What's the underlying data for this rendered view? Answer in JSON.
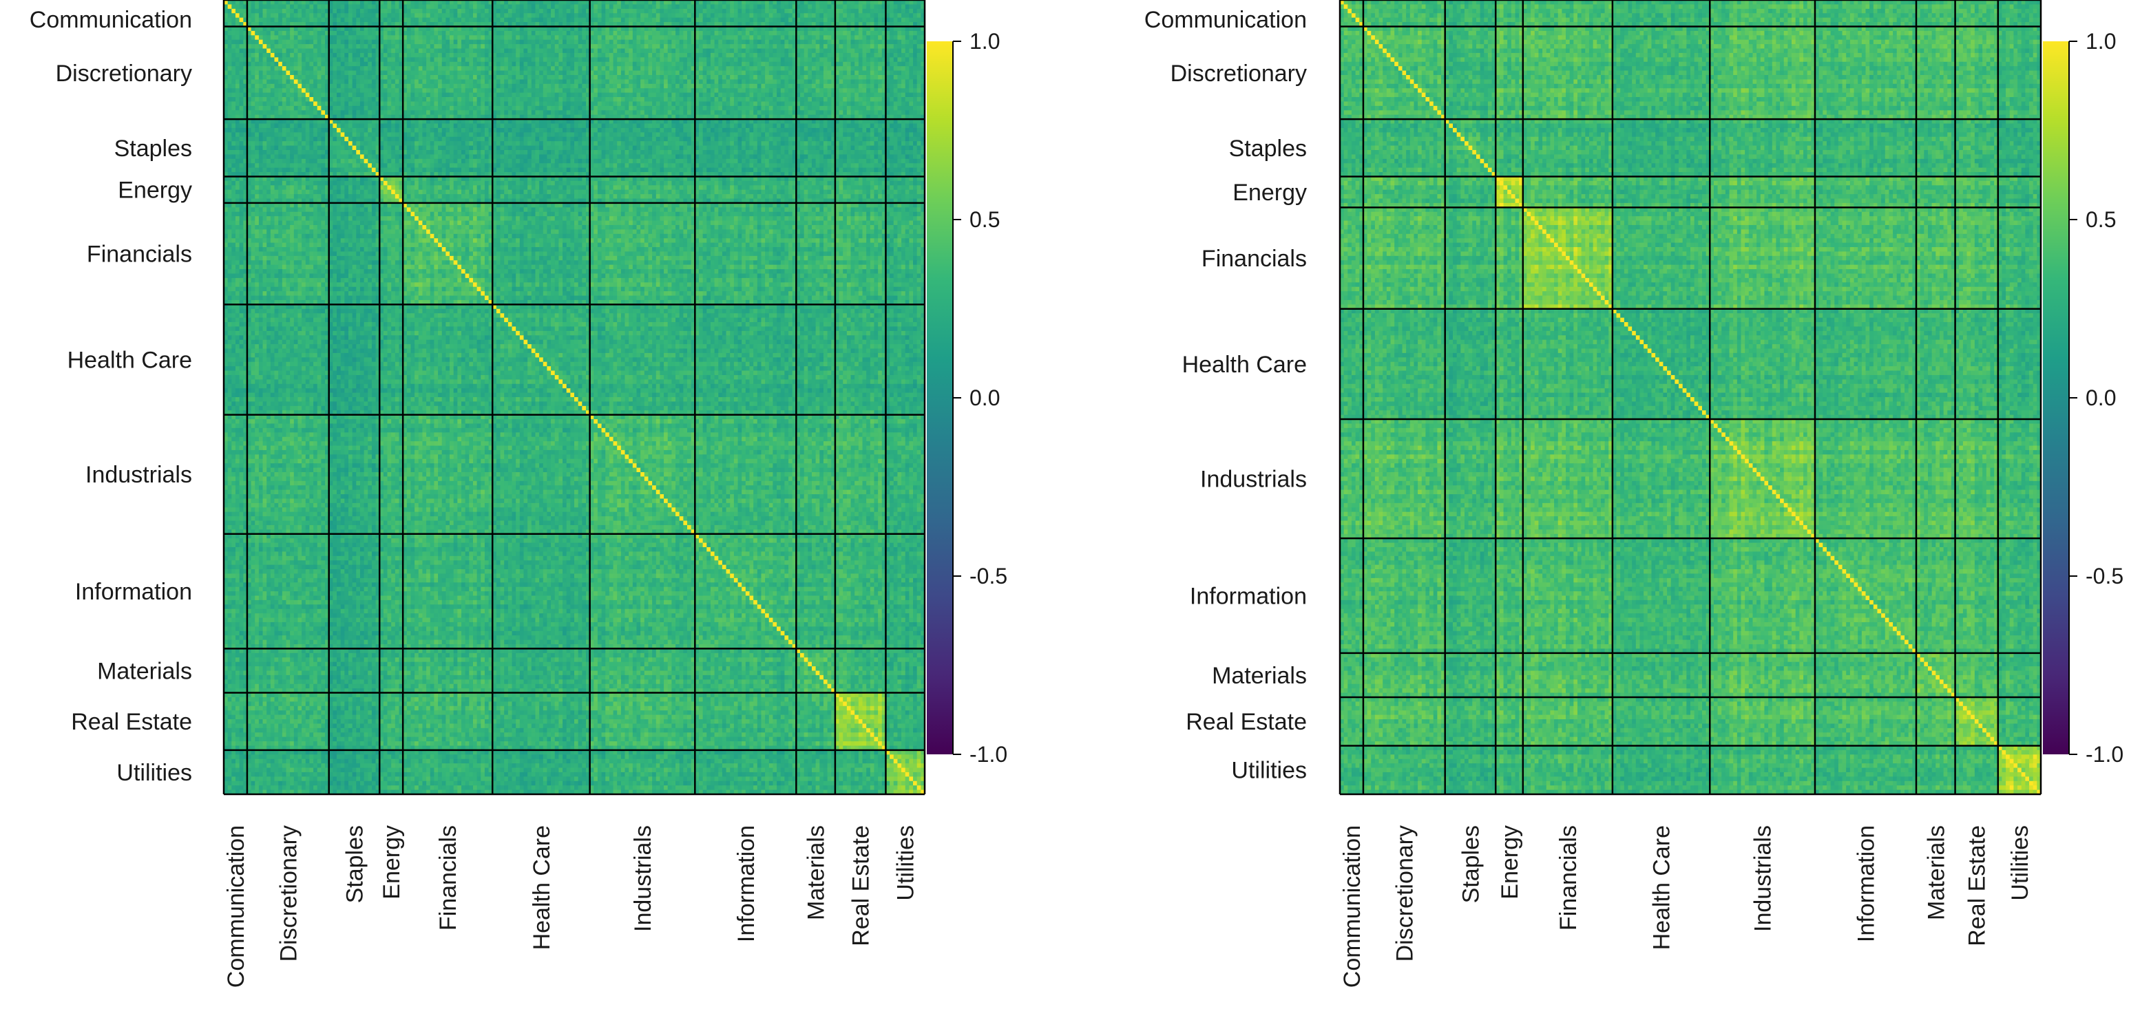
{
  "chart_data": [
    {
      "type": "heatmap",
      "sectors": [
        {
          "name": "Communication",
          "share": 0.038
        },
        {
          "name": "Discretionary",
          "share": 0.126
        },
        {
          "name": "Staples",
          "share": 0.075
        },
        {
          "name": "Energy",
          "share": 0.039
        },
        {
          "name": "Financials",
          "share": 0.139
        },
        {
          "name": "Health Care",
          "share": 0.151
        },
        {
          "name": "Industrials",
          "share": 0.158
        },
        {
          "name": "Information",
          "share": 0.158
        },
        {
          "name": "Materials",
          "share": 0.061
        },
        {
          "name": "Real Estate",
          "share": 0.076
        },
        {
          "name": "Utilities",
          "share": 0.063
        }
      ],
      "within_sector_corr": [
        0.34,
        0.33,
        0.3,
        0.55,
        0.42,
        0.3,
        0.38,
        0.35,
        0.42,
        0.62,
        0.58
      ],
      "sector_loading": [
        0.3,
        0.32,
        0.18,
        0.3,
        0.35,
        0.24,
        0.36,
        0.3,
        0.34,
        0.34,
        0.24
      ],
      "diagonal_value": 1.0,
      "colorbar": {
        "ticks": [
          1.0,
          0.5,
          0.0,
          -0.5,
          -1.0
        ],
        "tick_labels": [
          "1.0",
          "0.5",
          "0.0",
          "-0.5",
          "-1.0"
        ],
        "range": [
          -1.0,
          1.0
        ]
      }
    },
    {
      "type": "heatmap",
      "sectors": [
        {
          "name": "Communication",
          "share": 0.038
        },
        {
          "name": "Discretionary",
          "share": 0.126
        },
        {
          "name": "Staples",
          "share": 0.075
        },
        {
          "name": "Energy",
          "share": 0.039
        },
        {
          "name": "Financials",
          "share": 0.139
        },
        {
          "name": "Health Care",
          "share": 0.151
        },
        {
          "name": "Industrials",
          "share": 0.158
        },
        {
          "name": "Information",
          "share": 0.158
        },
        {
          "name": "Materials",
          "share": 0.061
        },
        {
          "name": "Real Estate",
          "share": 0.067
        },
        {
          "name": "Utilities",
          "share": 0.063
        }
      ],
      "within_sector_corr": [
        0.4,
        0.42,
        0.35,
        0.78,
        0.65,
        0.28,
        0.55,
        0.42,
        0.52,
        0.6,
        0.75
      ],
      "sector_loading": [
        0.36,
        0.42,
        0.26,
        0.42,
        0.46,
        0.28,
        0.48,
        0.38,
        0.44,
        0.42,
        0.3
      ],
      "diagonal_value": 1.0,
      "colorbar": {
        "ticks": [
          1.0,
          0.5,
          0.0,
          -0.5,
          -1.0
        ],
        "tick_labels": [
          "1.0",
          "0.5",
          "0.0",
          "-0.5",
          "-1.0"
        ],
        "range": [
          -1.0,
          1.0
        ]
      }
    }
  ],
  "colors": {
    "viridis": [
      "#440154",
      "#482777",
      "#3e4989",
      "#31688e",
      "#26828e",
      "#1f9e89",
      "#35b779",
      "#6ece58",
      "#b5de2b",
      "#fde725"
    ],
    "grid_line": "#000000"
  }
}
